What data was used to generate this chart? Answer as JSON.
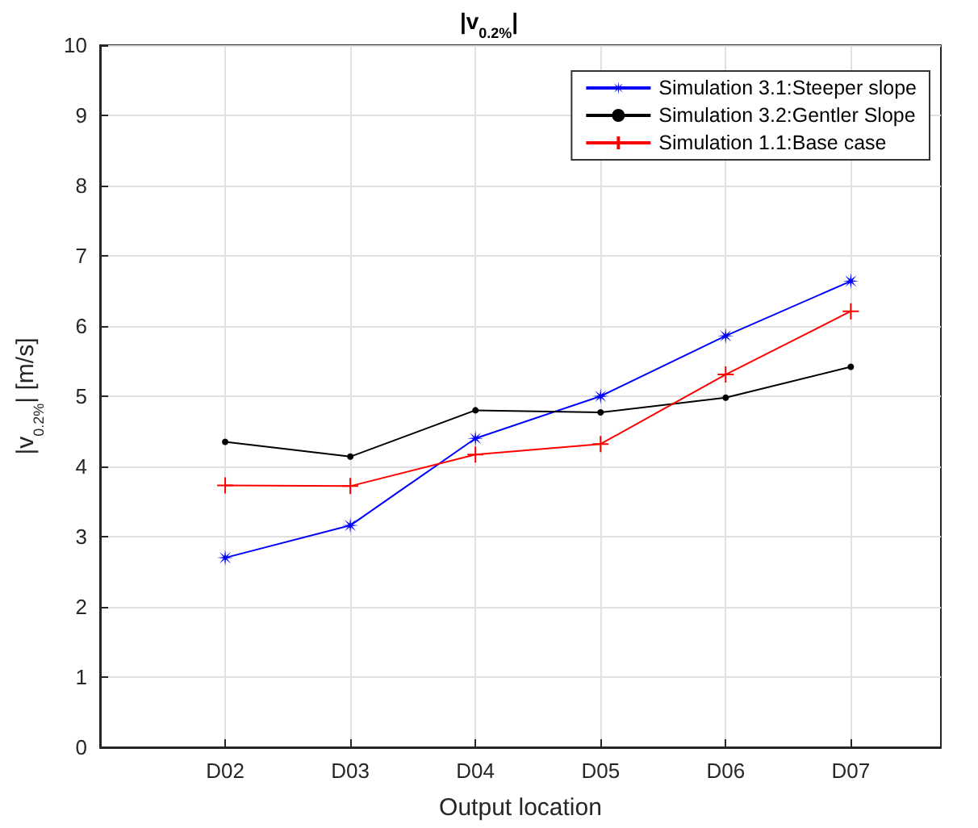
{
  "chart_data": {
    "type": "line",
    "title": "|v$_{0.2%}$|",
    "xlabel": "Output location",
    "ylabel": "|v$_{0.2%}$| [m/s]",
    "categories": [
      "D02",
      "D03",
      "D04",
      "D05",
      "D06",
      "D07"
    ],
    "series": [
      {
        "name": "Simulation 3.1:Steeper slope",
        "color": "#0000ff",
        "marker": "star",
        "values": [
          2.7,
          3.16,
          4.4,
          5.0,
          5.86,
          6.64
        ]
      },
      {
        "name": "Simulation 3.2:Gentler Slope",
        "color": "#000000",
        "marker": "circle",
        "values": [
          4.35,
          4.14,
          4.8,
          4.77,
          4.98,
          5.42
        ]
      },
      {
        "name": "Simulation 1.1:Base case",
        "color": "#ff0000",
        "marker": "cross",
        "values": [
          3.73,
          3.72,
          4.17,
          4.32,
          5.31,
          6.21
        ]
      }
    ],
    "ylim": [
      0,
      10
    ],
    "yticks": [
      0,
      1,
      2,
      3,
      4,
      5,
      6,
      7,
      8,
      9,
      10
    ],
    "grid": true,
    "legend": "top right",
    "line_style": "solid"
  }
}
